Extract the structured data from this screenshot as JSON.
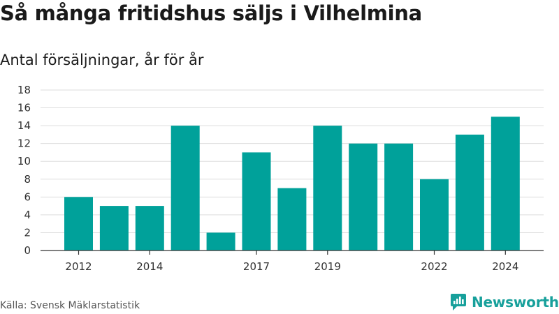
{
  "header": {
    "title": "Så många fritidshus säljs i Vilhelmina",
    "subtitle": "Antal försäljningar, år för år"
  },
  "footer": {
    "source": "Källa: Svensk Mäklarstatistik",
    "brand": "Newsworthy",
    "brand_icon": "newsworthy-logo-icon"
  },
  "colors": {
    "bar": "#00a19a",
    "grid": "#dddddd",
    "axis": "#333333",
    "brand": "#17a09b"
  },
  "chart_data": {
    "type": "bar",
    "categories": [
      "2012",
      "2013",
      "2014",
      "2015",
      "2016",
      "2017",
      "2018",
      "2019",
      "2020",
      "2021",
      "2022",
      "2023",
      "2024"
    ],
    "values": [
      6,
      5,
      5,
      14,
      2,
      11,
      7,
      14,
      12,
      12,
      8,
      13,
      15
    ],
    "x_tick_labels": [
      "2012",
      "2014",
      "2017",
      "2019",
      "2022",
      "2024"
    ],
    "yticks": [
      0,
      2,
      4,
      6,
      8,
      10,
      12,
      14,
      16,
      18
    ],
    "ylim": [
      0,
      18
    ],
    "grid": true,
    "title": "Så många fritidshus säljs i Vilhelmina",
    "subtitle": "Antal försäljningar, år för år"
  }
}
